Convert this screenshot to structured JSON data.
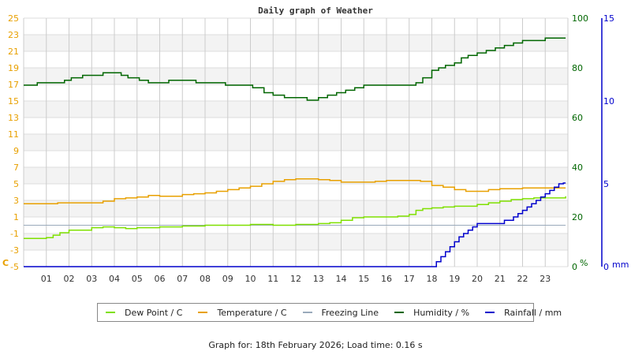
{
  "chart_data": {
    "type": "line",
    "title": "Daily graph of Weather",
    "xlabel": "",
    "x_ticks": [
      "01",
      "02",
      "03",
      "04",
      "05",
      "06",
      "07",
      "08",
      "09",
      "10",
      "11",
      "12",
      "13",
      "14",
      "15",
      "16",
      "17",
      "18",
      "19",
      "20",
      "21",
      "22",
      "23"
    ],
    "x_range_hours": [
      0,
      24
    ],
    "grid": true,
    "legend_position": "bottom",
    "axes": {
      "temperature": {
        "label": "C",
        "ticks": [
          25,
          23,
          21,
          19,
          17,
          15,
          13,
          11,
          9,
          7,
          5,
          3,
          1,
          -1,
          -3,
          -5
        ],
        "ylim": [
          -5,
          25
        ],
        "color": "#e8a000",
        "side": "left"
      },
      "humidity": {
        "label": "%",
        "ticks": [
          100,
          80,
          60,
          40,
          20,
          0
        ],
        "ylim": [
          0,
          100
        ],
        "color": "#006600",
        "side": "right"
      },
      "rainfall": {
        "label": "mm",
        "ticks": [
          15,
          10,
          5,
          0
        ],
        "ylim": [
          0,
          15
        ],
        "color": "#0000cc",
        "side": "right-outer"
      }
    },
    "series": [
      {
        "name": "Dew Point / C",
        "axis": "temperature",
        "color": "#7fe000",
        "x": [
          0,
          0.5,
          1.0,
          1.3,
          1.6,
          2.0,
          2.4,
          3.0,
          3.5,
          4.0,
          4.5,
          5.0,
          5.5,
          6.0,
          6.5,
          7.0,
          8.0,
          9.0,
          10.0,
          11.0,
          12.0,
          13.0,
          13.5,
          14.0,
          14.5,
          15.0,
          15.5,
          16.0,
          16.5,
          17.0,
          17.3,
          17.6,
          18.0,
          18.5,
          19.0,
          19.5,
          20.0,
          20.5,
          21.0,
          21.5,
          22.0,
          22.5,
          23.0,
          23.5,
          23.9
        ],
        "values": [
          -1.6,
          -1.6,
          -1.5,
          -1.2,
          -0.9,
          -0.6,
          -0.6,
          -0.3,
          -0.2,
          -0.3,
          -0.4,
          -0.3,
          -0.3,
          -0.2,
          -0.2,
          -0.1,
          0.0,
          0.0,
          0.1,
          0.0,
          0.1,
          0.2,
          0.3,
          0.6,
          0.9,
          1.0,
          1.0,
          1.0,
          1.1,
          1.3,
          1.8,
          2.0,
          2.1,
          2.2,
          2.3,
          2.3,
          2.5,
          2.7,
          2.9,
          3.1,
          3.2,
          3.3,
          3.3,
          3.3,
          3.5
        ]
      },
      {
        "name": "Temperature / C",
        "axis": "temperature",
        "color": "#e8a000",
        "x": [
          0,
          0.5,
          1.0,
          1.5,
          2.0,
          2.5,
          3.0,
          3.5,
          4.0,
          4.5,
          5.0,
          5.5,
          6.0,
          6.5,
          7.0,
          7.5,
          8.0,
          8.5,
          9.0,
          9.5,
          10.0,
          10.5,
          11.0,
          11.5,
          12.0,
          12.5,
          13.0,
          13.5,
          14.0,
          14.5,
          15.0,
          15.5,
          16.0,
          16.5,
          17.0,
          17.5,
          18.0,
          18.5,
          19.0,
          19.5,
          20.0,
          20.5,
          21.0,
          21.5,
          22.0,
          22.5,
          23.0,
          23.5,
          23.9
        ],
        "values": [
          2.6,
          2.6,
          2.6,
          2.7,
          2.7,
          2.7,
          2.7,
          2.9,
          3.2,
          3.3,
          3.4,
          3.6,
          3.5,
          3.5,
          3.7,
          3.8,
          3.9,
          4.1,
          4.3,
          4.5,
          4.7,
          5.0,
          5.3,
          5.5,
          5.6,
          5.6,
          5.5,
          5.4,
          5.2,
          5.2,
          5.2,
          5.3,
          5.4,
          5.4,
          5.4,
          5.3,
          4.8,
          4.6,
          4.3,
          4.1,
          4.1,
          4.3,
          4.4,
          4.4,
          4.5,
          4.5,
          4.5,
          4.5,
          4.5
        ]
      },
      {
        "name": "Freezing Line",
        "axis": "temperature",
        "color": "#99aabb",
        "x": [
          0,
          23.9
        ],
        "values": [
          0,
          0
        ]
      },
      {
        "name": "Humidity / %",
        "axis": "humidity",
        "color": "#006600",
        "x": [
          0,
          0.4,
          0.6,
          1.2,
          1.8,
          2.1,
          2.6,
          3.0,
          3.5,
          3.9,
          4.3,
          4.6,
          5.1,
          5.5,
          6.0,
          6.4,
          7.0,
          7.6,
          8.2,
          8.9,
          9.6,
          10.1,
          10.6,
          11.0,
          11.5,
          12.0,
          12.5,
          13.0,
          13.4,
          13.8,
          14.2,
          14.6,
          15.0,
          15.7,
          16.3,
          17.0,
          17.3,
          17.6,
          18.0,
          18.3,
          18.6,
          19.0,
          19.3,
          19.6,
          20.0,
          20.4,
          20.8,
          21.2,
          21.6,
          22.0,
          22.5,
          23.0,
          23.5,
          23.9
        ],
        "values": [
          73,
          73,
          74,
          74,
          75,
          76,
          77,
          77,
          78,
          78,
          77,
          76,
          75,
          74,
          74,
          75,
          75,
          74,
          74,
          73,
          73,
          72,
          70,
          69,
          68,
          68,
          67,
          68,
          69,
          70,
          71,
          72,
          73,
          73,
          73,
          73,
          74,
          76,
          79,
          80,
          81,
          82,
          84,
          85,
          86,
          87,
          88,
          89,
          90,
          91,
          91,
          92,
          92,
          92
        ]
      },
      {
        "name": "Rainfall / mm",
        "axis": "rainfall",
        "color": "#0000cc",
        "x": [
          0,
          18.0,
          18.2,
          18.4,
          18.6,
          18.8,
          19.0,
          19.2,
          19.4,
          19.6,
          19.8,
          20.0,
          20.4,
          20.8,
          21.2,
          21.6,
          21.8,
          22.0,
          22.2,
          22.4,
          22.6,
          22.8,
          23.0,
          23.2,
          23.4,
          23.6,
          23.8,
          23.9
        ],
        "values": [
          0,
          0,
          0.3,
          0.6,
          0.9,
          1.2,
          1.5,
          1.8,
          2.0,
          2.2,
          2.4,
          2.6,
          2.6,
          2.6,
          2.8,
          3.0,
          3.2,
          3.4,
          3.6,
          3.8,
          4.0,
          4.2,
          4.4,
          4.6,
          4.8,
          5.0,
          5.05,
          5.05
        ]
      }
    ]
  },
  "footer": {
    "text": "Graph for: 18th February 2026; Load time: 0.16 s"
  }
}
